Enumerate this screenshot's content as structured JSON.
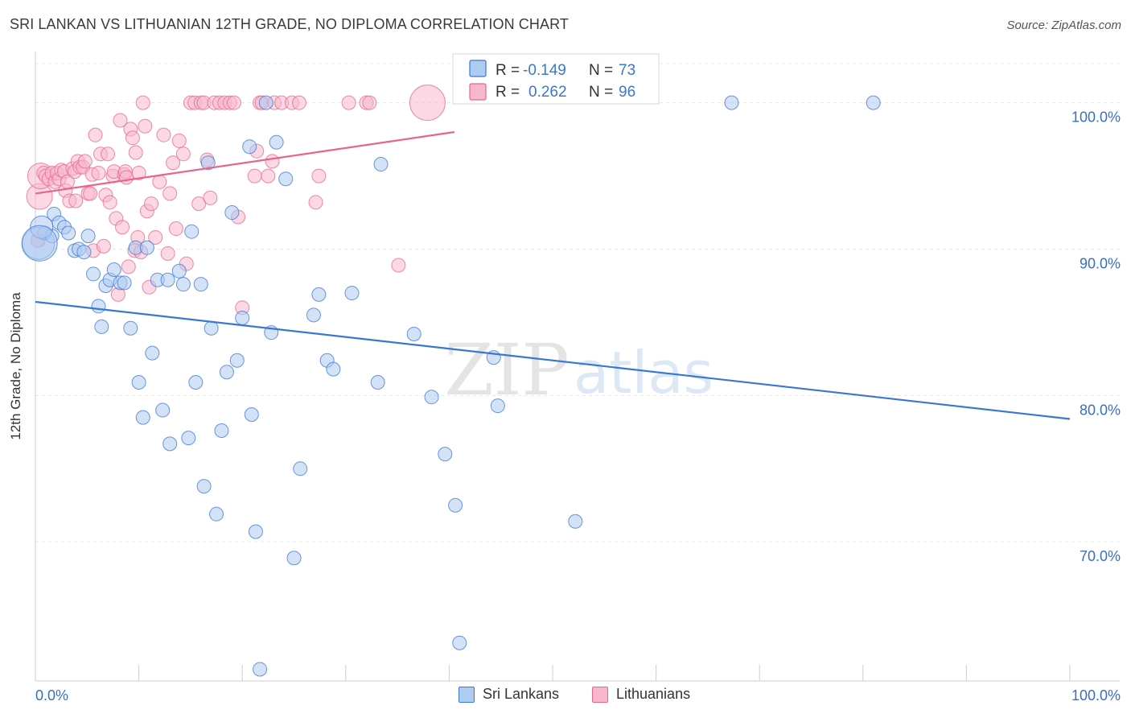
{
  "title": "SRI LANKAN VS LITHUANIAN 12TH GRADE, NO DIPLOMA CORRELATION CHART",
  "source": "Source: ZipAtlas.com",
  "watermark": {
    "zip": "ZIP",
    "atlas": "atlas"
  },
  "colors": {
    "blue": "#3a76d2",
    "blue_fill": "#aecbf0",
    "pink": "#e8648e",
    "pink_fill": "#f8b8cc",
    "tick": "#3a6fc0"
  },
  "legend": {
    "r_label": "R =",
    "n_label": "N =",
    "series": [
      {
        "r": "-0.149",
        "n": "73"
      },
      {
        "r": "0.262",
        "n": "96"
      }
    ]
  },
  "legend_bottom": [
    "Sri Lankans",
    "Lithuanians"
  ],
  "chart_data": {
    "type": "scatter",
    "title": "SRI LANKAN VS LITHUANIAN 12TH GRADE, NO DIPLOMA CORRELATION CHART",
    "xlabel": "",
    "ylabel": "12th Grade, No Diploma",
    "x_tick_labels": [
      "0.0%",
      "100.0%"
    ],
    "y_tick_labels": [
      "100.0%",
      "90.0%",
      "80.0%",
      "70.0%"
    ],
    "y_ticks": [
      100,
      90,
      80,
      70
    ],
    "xlim": [
      0,
      100
    ],
    "ylim": [
      60.5,
      103.5
    ],
    "grid": true,
    "series": [
      {
        "name": "Sri Lankans",
        "color": "#3a76d2",
        "trend": [
          [
            0,
            86.4
          ],
          [
            100,
            78.4
          ]
        ],
        "points": [
          [
            0.3,
            90.4
          ],
          [
            0.9,
            91.1
          ],
          [
            1.8,
            92.4
          ],
          [
            1.6,
            90.9
          ],
          [
            2.3,
            91.8
          ],
          [
            2.8,
            91.5
          ],
          [
            3.2,
            91.1
          ],
          [
            3.8,
            89.9
          ],
          [
            4.2,
            90.0
          ],
          [
            4.7,
            89.8
          ],
          [
            5.1,
            90.9
          ],
          [
            5.6,
            88.3
          ],
          [
            6.1,
            86.1
          ],
          [
            6.4,
            84.7
          ],
          [
            6.8,
            87.5
          ],
          [
            7.2,
            87.9
          ],
          [
            7.6,
            88.6
          ],
          [
            8.2,
            87.7
          ],
          [
            8.6,
            87.7
          ],
          [
            9.2,
            84.6
          ],
          [
            9.7,
            90.1
          ],
          [
            10.0,
            80.9
          ],
          [
            10.4,
            78.5
          ],
          [
            10.8,
            90.1
          ],
          [
            11.3,
            82.9
          ],
          [
            11.8,
            87.9
          ],
          [
            12.3,
            79.0
          ],
          [
            12.8,
            87.9
          ],
          [
            13.0,
            76.7
          ],
          [
            13.9,
            88.5
          ],
          [
            14.3,
            87.6
          ],
          [
            14.8,
            77.1
          ],
          [
            15.1,
            91.2
          ],
          [
            15.5,
            80.9
          ],
          [
            16.0,
            87.6
          ],
          [
            16.3,
            73.8
          ],
          [
            16.7,
            95.9
          ],
          [
            17.0,
            84.6
          ],
          [
            17.5,
            71.9
          ],
          [
            18.0,
            77.6
          ],
          [
            18.5,
            81.6
          ],
          [
            19.0,
            92.5
          ],
          [
            19.5,
            82.4
          ],
          [
            20.0,
            85.3
          ],
          [
            20.7,
            97.0
          ],
          [
            20.9,
            78.7
          ],
          [
            21.3,
            70.7
          ],
          [
            21.7,
            61.3
          ],
          [
            22.3,
            100.0
          ],
          [
            22.8,
            84.3
          ],
          [
            23.3,
            97.3
          ],
          [
            24.2,
            94.8
          ],
          [
            25.0,
            68.9
          ],
          [
            25.6,
            75.0
          ],
          [
            26.9,
            85.5
          ],
          [
            27.4,
            86.9
          ],
          [
            28.2,
            82.4
          ],
          [
            28.8,
            81.8
          ],
          [
            30.6,
            87.0
          ],
          [
            33.1,
            80.9
          ],
          [
            33.4,
            95.8
          ],
          [
            36.6,
            84.2
          ],
          [
            38.3,
            79.9
          ],
          [
            39.6,
            76.0
          ],
          [
            40.6,
            72.5
          ],
          [
            41.0,
            63.1
          ],
          [
            44.3,
            82.6
          ],
          [
            44.7,
            79.3
          ],
          [
            52.2,
            71.4
          ],
          [
            67.3,
            100.0
          ],
          [
            81.0,
            100.0
          ],
          [
            0.6,
            91.5
          ],
          [
            0.4,
            90.4
          ]
        ],
        "sizes": [
          20,
          0,
          0,
          0,
          0,
          0,
          0,
          0,
          0,
          0,
          0,
          0,
          0,
          0,
          0,
          0,
          0,
          0,
          0,
          0,
          0,
          0,
          0,
          0,
          0,
          0,
          0,
          0,
          0,
          0,
          0,
          0,
          0,
          0,
          0,
          0,
          0,
          0,
          0,
          0,
          0,
          0,
          0,
          0,
          0,
          0,
          0,
          0,
          0,
          0,
          0,
          0,
          0,
          0,
          0,
          0,
          0,
          0,
          0,
          0,
          0,
          0,
          0,
          0,
          0,
          0,
          0,
          0,
          0,
          0,
          0,
          14,
          22
        ]
      },
      {
        "name": "Lithuanians",
        "color": "#e8648e",
        "trend": [
          [
            0,
            93.8
          ],
          [
            40.5,
            98.0
          ]
        ],
        "points": [
          [
            0.3,
            90.6
          ],
          [
            0.4,
            93.6
          ],
          [
            0.5,
            95.0
          ],
          [
            0.8,
            95.2
          ],
          [
            1.0,
            95.0
          ],
          [
            1.3,
            94.8
          ],
          [
            1.6,
            95.2
          ],
          [
            1.9,
            94.6
          ],
          [
            2.1,
            95.2
          ],
          [
            2.3,
            94.8
          ],
          [
            2.5,
            95.4
          ],
          [
            2.8,
            95.3
          ],
          [
            2.9,
            94.0
          ],
          [
            3.1,
            94.6
          ],
          [
            3.3,
            93.3
          ],
          [
            3.6,
            95.5
          ],
          [
            3.8,
            95.3
          ],
          [
            3.9,
            93.3
          ],
          [
            4.1,
            96.0
          ],
          [
            4.3,
            95.6
          ],
          [
            4.6,
            95.6
          ],
          [
            4.8,
            96.0
          ],
          [
            5.1,
            93.8
          ],
          [
            5.3,
            93.8
          ],
          [
            5.5,
            95.1
          ],
          [
            5.6,
            89.9
          ],
          [
            5.8,
            97.8
          ],
          [
            6.1,
            95.2
          ],
          [
            6.3,
            96.5
          ],
          [
            6.6,
            90.2
          ],
          [
            6.8,
            93.7
          ],
          [
            7.0,
            96.5
          ],
          [
            7.2,
            93.2
          ],
          [
            7.5,
            95.0
          ],
          [
            7.6,
            95.3
          ],
          [
            7.8,
            92.1
          ],
          [
            8.0,
            86.9
          ],
          [
            8.2,
            98.8
          ],
          [
            8.4,
            91.5
          ],
          [
            8.6,
            95.1
          ],
          [
            8.7,
            95.3
          ],
          [
            8.8,
            94.9
          ],
          [
            9.0,
            88.8
          ],
          [
            9.2,
            98.2
          ],
          [
            9.4,
            97.6
          ],
          [
            9.6,
            89.9
          ],
          [
            9.7,
            96.6
          ],
          [
            9.9,
            90.8
          ],
          [
            10.0,
            95.2
          ],
          [
            10.2,
            89.8
          ],
          [
            10.4,
            100.0
          ],
          [
            10.6,
            98.4
          ],
          [
            10.8,
            92.6
          ],
          [
            11.0,
            87.4
          ],
          [
            11.2,
            93.1
          ],
          [
            11.6,
            90.8
          ],
          [
            12.0,
            94.6
          ],
          [
            12.4,
            97.8
          ],
          [
            12.8,
            89.7
          ],
          [
            13.0,
            93.8
          ],
          [
            13.3,
            95.9
          ],
          [
            13.6,
            91.4
          ],
          [
            13.9,
            97.4
          ],
          [
            14.3,
            96.5
          ],
          [
            14.6,
            89.0
          ],
          [
            15.0,
            100.0
          ],
          [
            15.4,
            100.0
          ],
          [
            15.8,
            93.1
          ],
          [
            16.0,
            100.0
          ],
          [
            16.3,
            100.0
          ],
          [
            16.6,
            96.1
          ],
          [
            16.9,
            93.5
          ],
          [
            17.3,
            100.0
          ],
          [
            17.8,
            100.0
          ],
          [
            18.3,
            100.0
          ],
          [
            18.8,
            100.0
          ],
          [
            19.2,
            100.0
          ],
          [
            19.6,
            92.2
          ],
          [
            20.0,
            86.0
          ],
          [
            21.2,
            95.0
          ],
          [
            21.4,
            96.7
          ],
          [
            21.7,
            100.0
          ],
          [
            21.9,
            100.0
          ],
          [
            22.5,
            95.0
          ],
          [
            22.9,
            96.0
          ],
          [
            23.1,
            100.0
          ],
          [
            23.8,
            100.0
          ],
          [
            24.8,
            100.0
          ],
          [
            25.5,
            100.0
          ],
          [
            27.1,
            93.2
          ],
          [
            27.4,
            95.0
          ],
          [
            30.3,
            100.0
          ],
          [
            32.0,
            100.0
          ],
          [
            32.3,
            100.0
          ],
          [
            35.1,
            88.9
          ],
          [
            37.9,
            100.0
          ],
          [
            0.2,
            90.6
          ]
        ],
        "sizes": [
          0,
          16,
          16,
          0,
          0,
          0,
          0,
          0,
          0,
          0,
          0,
          0,
          0,
          0,
          0,
          0,
          0,
          0,
          0,
          0,
          0,
          0,
          0,
          0,
          0,
          0,
          0,
          0,
          0,
          0,
          0,
          0,
          0,
          0,
          0,
          0,
          0,
          0,
          0,
          0,
          0,
          0,
          0,
          0,
          0,
          0,
          0,
          0,
          0,
          0,
          0,
          0,
          0,
          0,
          0,
          0,
          0,
          0,
          0,
          0,
          0,
          0,
          0,
          0,
          0,
          0,
          0,
          0,
          0,
          0,
          0,
          0,
          0,
          0,
          0,
          0,
          0,
          0,
          0,
          0,
          0,
          0,
          0,
          0,
          0,
          0,
          0,
          0,
          0,
          0,
          0,
          0,
          0,
          0,
          0,
          22
        ]
      }
    ]
  }
}
